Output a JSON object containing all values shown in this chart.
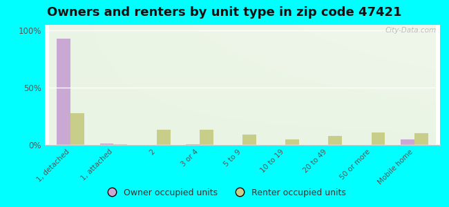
{
  "title": "Owners and renters by unit type in zip code 47421",
  "categories": [
    "1, detached",
    "1, attached",
    "2",
    "3 or 4",
    "5 to 9",
    "10 to 19",
    "20 to 49",
    "50 or more",
    "Mobile home"
  ],
  "owner_values": [
    93,
    1.5,
    0,
    0.5,
    0,
    0,
    0,
    0,
    5
  ],
  "renter_values": [
    28,
    0.5,
    13,
    13,
    9,
    5,
    8,
    11,
    10
  ],
  "owner_color": "#c9a8d4",
  "renter_color": "#c8cd8a",
  "background_color": "#00ffff",
  "ylim": [
    0,
    105
  ],
  "yticks": [
    0,
    50,
    100
  ],
  "ytick_labels": [
    "0%",
    "50%",
    "100%"
  ],
  "title_fontsize": 13,
  "legend_labels": [
    "Owner occupied units",
    "Renter occupied units"
  ],
  "watermark": "City-Data.com",
  "bar_width": 0.32
}
